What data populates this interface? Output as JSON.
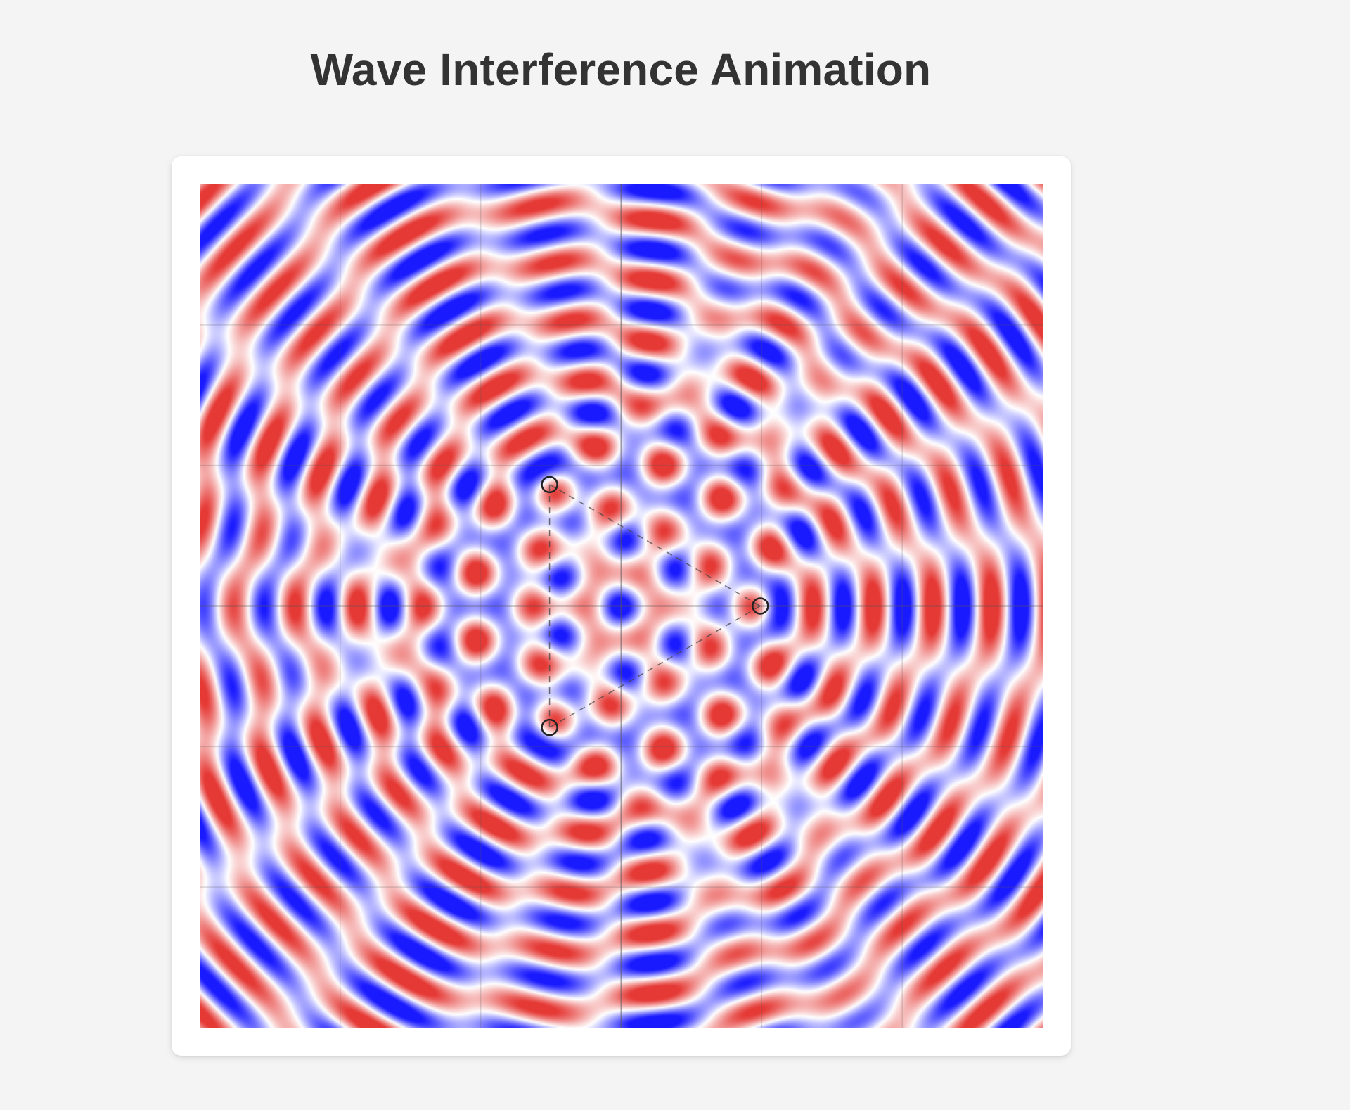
{
  "page": {
    "title": "Wave Interference Animation"
  },
  "simulation": {
    "colors": {
      "positive": "#e53935",
      "negative": "#1a1aff",
      "neutral": "#ffffff",
      "grid": "#555555",
      "source_marker": "#222222"
    },
    "sources": [
      {
        "name": "source-1",
        "u": 0.415,
        "v": 0.356
      },
      {
        "name": "source-2",
        "u": 0.665,
        "v": 0.5
      },
      {
        "name": "source-3",
        "u": 0.415,
        "v": 0.644
      }
    ],
    "grid_divisions": 6,
    "wavelength_fraction": 0.068
  }
}
